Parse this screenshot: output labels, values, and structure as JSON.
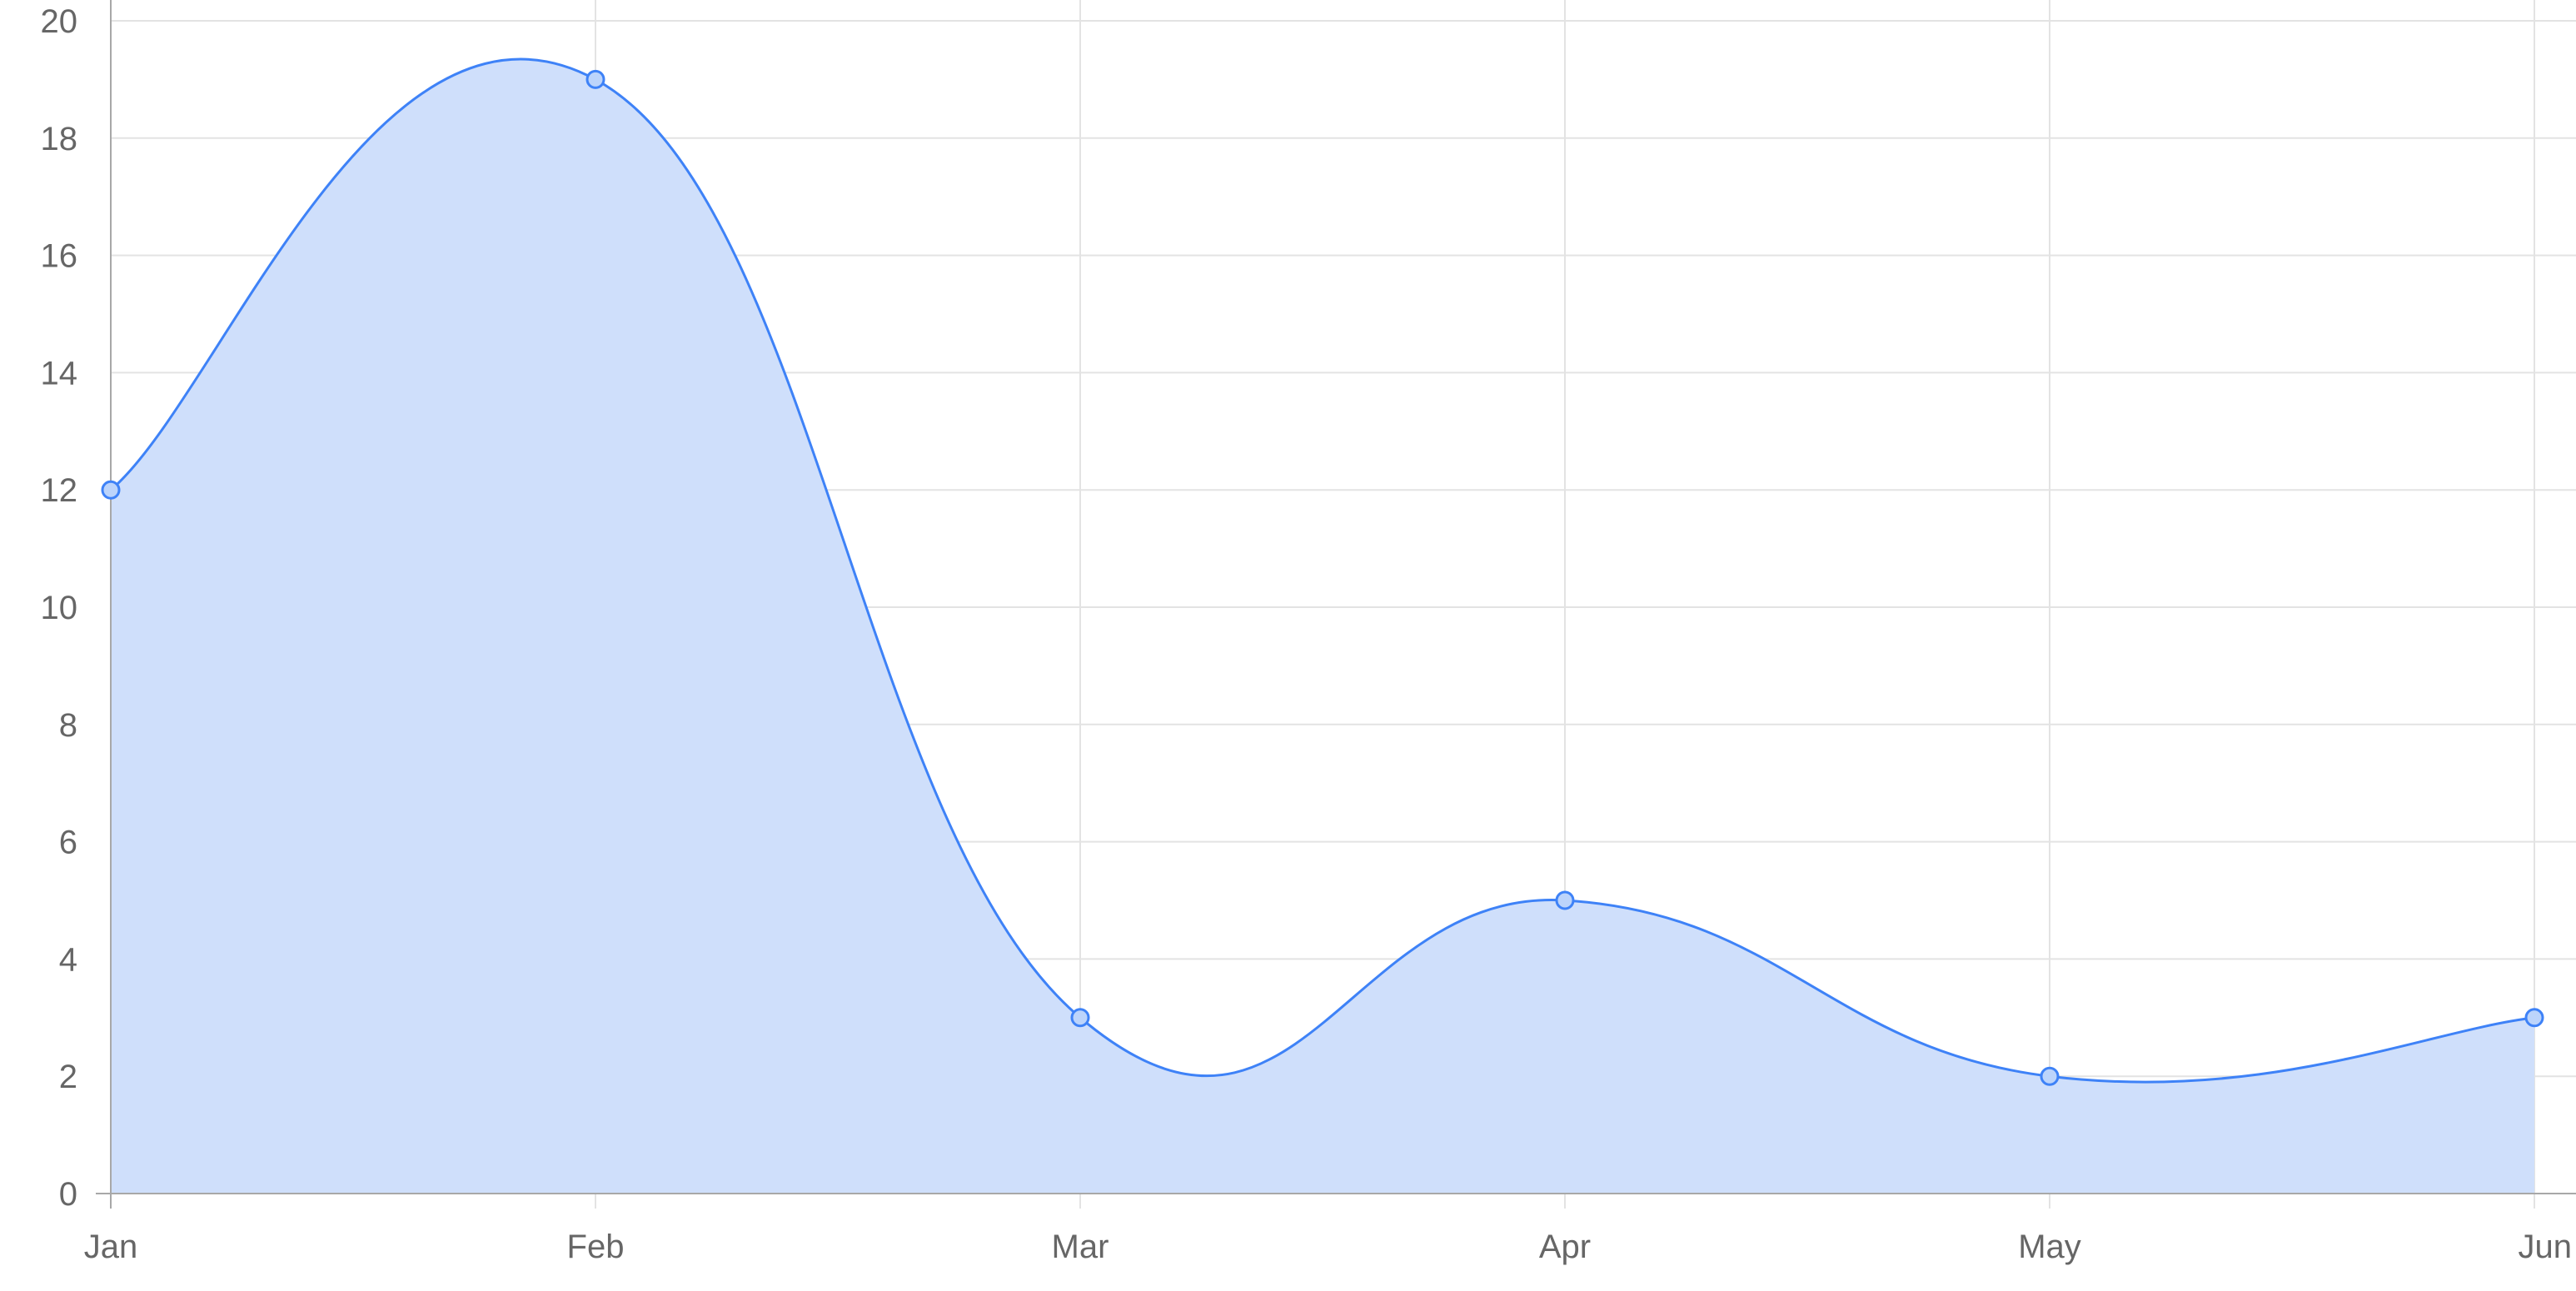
{
  "chart_data": {
    "type": "area",
    "categories": [
      "Jan",
      "Feb",
      "Mar",
      "Apr",
      "May",
      "Jun"
    ],
    "series": [
      {
        "values": [
          12,
          19,
          3,
          5,
          2,
          3
        ]
      }
    ],
    "ylim": [
      0,
      20
    ],
    "yticks": [
      0,
      2,
      4,
      6,
      8,
      10,
      12,
      14,
      16,
      18,
      20
    ],
    "grid": true,
    "smooth": true,
    "colors": {
      "line": "#3e82f7",
      "fill": "#cfdffb",
      "point_fill": "#bcd4fb",
      "grid": "#e3e3e3",
      "axis": "#a8a8a8",
      "text": "#666666"
    }
  }
}
